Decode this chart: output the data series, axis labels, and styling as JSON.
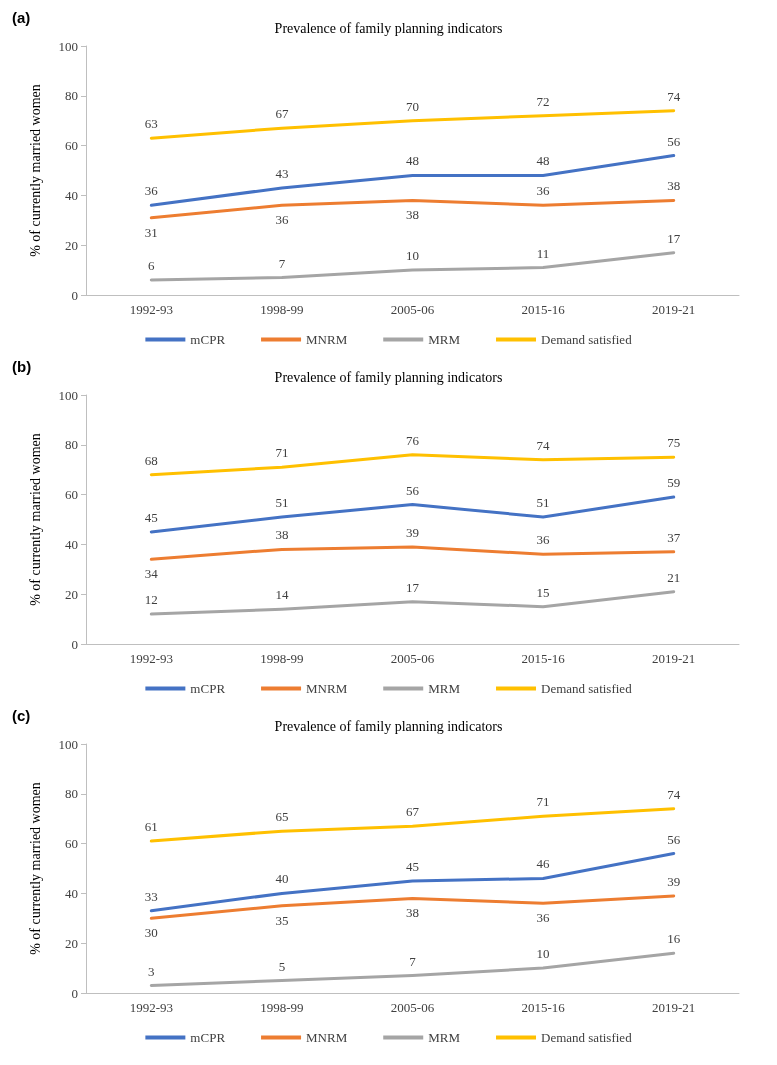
{
  "chart_data": [
    {
      "type": "line",
      "title": "Prevalence of family planning indicators",
      "annotations": [
        "(a)"
      ],
      "ylabel": "% of currently married women",
      "categories": [
        "1992-93",
        "1998-99",
        "2005-06",
        "2015-16",
        "2019-21"
      ],
      "ylim": [
        0,
        100
      ],
      "yticks": [
        0,
        20,
        40,
        60,
        80,
        100
      ],
      "legend": "bottom",
      "marker": "none",
      "data_labels": true,
      "series": [
        {
          "name": "mCPR",
          "color": "#4472c4",
          "values": [
            36,
            43,
            48,
            48,
            56
          ]
        },
        {
          "name": "MNRM",
          "color": "#ed7d31",
          "values": [
            31,
            36,
            38,
            36,
            38
          ]
        },
        {
          "name": "MRM",
          "color": "#a5a5a5",
          "values": [
            6,
            7,
            10,
            11,
            17
          ]
        },
        {
          "name": "Demand satisfied",
          "color": "#ffc000",
          "values": [
            63,
            67,
            70,
            72,
            74
          ]
        }
      ]
    },
    {
      "type": "line",
      "title": "Prevalence of family planning indicators",
      "annotations": [
        "(b)"
      ],
      "ylabel": "% of currently married women",
      "categories": [
        "1992-93",
        "1998-99",
        "2005-06",
        "2015-16",
        "2019-21"
      ],
      "ylim": [
        0,
        100
      ],
      "yticks": [
        0,
        20,
        40,
        60,
        80,
        100
      ],
      "legend": "bottom",
      "marker": "none",
      "data_labels": true,
      "series": [
        {
          "name": "mCPR",
          "color": "#4472c4",
          "values": [
            45,
            51,
            56,
            51,
            59
          ]
        },
        {
          "name": "MNRM",
          "color": "#ed7d31",
          "values": [
            34,
            38,
            39,
            36,
            37
          ]
        },
        {
          "name": "MRM",
          "color": "#a5a5a5",
          "values": [
            12,
            14,
            17,
            15,
            21
          ]
        },
        {
          "name": "Demand satisfied",
          "color": "#ffc000",
          "values": [
            68,
            71,
            76,
            74,
            75
          ]
        }
      ]
    },
    {
      "type": "line",
      "title": "Prevalence of family planning indicators",
      "annotations": [
        "(c)"
      ],
      "ylabel": "% of currently married women",
      "categories": [
        "1992-93",
        "1998-99",
        "2005-06",
        "2015-16",
        "2019-21"
      ],
      "ylim": [
        0,
        100
      ],
      "yticks": [
        0,
        20,
        40,
        60,
        80,
        100
      ],
      "legend": "bottom",
      "marker": "none",
      "data_labels": true,
      "series": [
        {
          "name": "mCPR",
          "color": "#4472c4",
          "values": [
            33,
            40,
            45,
            46,
            56
          ]
        },
        {
          "name": "MNRM",
          "color": "#ed7d31",
          "values": [
            30,
            35,
            38,
            36,
            39
          ]
        },
        {
          "name": "MRM",
          "color": "#a5a5a5",
          "values": [
            3,
            5,
            7,
            10,
            16
          ]
        },
        {
          "name": "Demand satisfied",
          "color": "#ffc000",
          "values": [
            61,
            65,
            67,
            71,
            74
          ]
        }
      ]
    }
  ]
}
